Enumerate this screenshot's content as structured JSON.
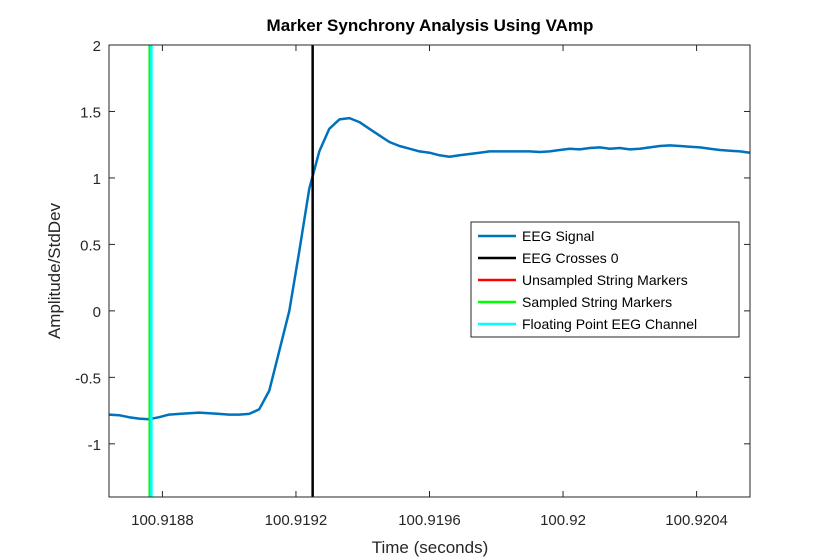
{
  "chart_data": {
    "type": "line",
    "title": "Marker Synchrony Analysis Using VAmp",
    "xlabel": "Time (seconds)",
    "ylabel": "Amplitude/StdDev",
    "xlim": [
      100.91864,
      100.92056
    ],
    "ylim": [
      -1.4,
      2.0
    ],
    "xticks": [
      100.9188,
      100.9192,
      100.9196,
      100.92,
      100.9204
    ],
    "xtick_labels": [
      "100.9188",
      "100.9192",
      "100.9196",
      "100.92",
      "100.9204"
    ],
    "yticks": [
      2,
      1.5,
      1,
      0.5,
      0,
      -0.5,
      -1
    ],
    "ytick_labels": [
      "2",
      "1.5",
      "1",
      "0.5",
      "0",
      "-0.5",
      "-1"
    ],
    "grid": false,
    "legend_position": "center-right",
    "series": [
      {
        "name": "EEG Signal",
        "color": "#0072BD",
        "x": [
          100.91864,
          100.91867,
          100.9187,
          100.91873,
          100.91876,
          100.91879,
          100.91882,
          100.91885,
          100.91888,
          100.91891,
          100.91894,
          100.91897,
          100.919,
          100.91903,
          100.91906,
          100.91909,
          100.91912,
          100.91915,
          100.91918,
          100.91921,
          100.91924,
          100.91927,
          100.9193,
          100.91933,
          100.91936,
          100.91939,
          100.91942,
          100.91945,
          100.91948,
          100.91951,
          100.91954,
          100.91957,
          100.9196,
          100.91963,
          100.91966,
          100.91969,
          100.91972,
          100.91975,
          100.91978,
          100.91981,
          100.91984,
          100.91987,
          100.9199,
          100.91993,
          100.91996,
          100.91999,
          100.92002,
          100.92005,
          100.92008,
          100.92011,
          100.92014,
          100.92017,
          100.9202,
          100.92023,
          100.92026,
          100.92029,
          100.92032,
          100.92035,
          100.92038,
          100.92041,
          100.92044,
          100.92047,
          100.9205,
          100.92053,
          100.92056
        ],
        "y": [
          -0.78,
          -0.785,
          -0.8,
          -0.81,
          -0.815,
          -0.8,
          -0.78,
          -0.775,
          -0.77,
          -0.765,
          -0.77,
          -0.775,
          -0.78,
          -0.78,
          -0.775,
          -0.74,
          -0.6,
          -0.3,
          0.0,
          0.45,
          0.92,
          1.2,
          1.37,
          1.44,
          1.45,
          1.42,
          1.37,
          1.32,
          1.27,
          1.24,
          1.22,
          1.2,
          1.19,
          1.17,
          1.16,
          1.17,
          1.18,
          1.19,
          1.2,
          1.2,
          1.2,
          1.2,
          1.2,
          1.195,
          1.2,
          1.21,
          1.22,
          1.215,
          1.225,
          1.23,
          1.22,
          1.225,
          1.215,
          1.22,
          1.23,
          1.24,
          1.245,
          1.24,
          1.235,
          1.23,
          1.22,
          1.21,
          1.205,
          1.2,
          1.19
        ]
      },
      {
        "name": "EEG Crosses 0",
        "color": "#000000",
        "x_marker": 100.91925,
        "y_range": [
          -1.4,
          2.0
        ]
      },
      {
        "name": "Unsampled String Markers",
        "color": "#FF0000",
        "x_marker": 100.918762,
        "y_range": [
          -1.4,
          2.0
        ]
      },
      {
        "name": "Sampled String Markers",
        "color": "#00FF00",
        "x_marker": 100.918762,
        "y_range": [
          -1.4,
          2.0
        ]
      },
      {
        "name": "Floating Point EEG Channel",
        "color": "#00FFFF",
        "x_marker": 100.918767,
        "y_range": [
          -1.4,
          2.0
        ]
      }
    ]
  }
}
